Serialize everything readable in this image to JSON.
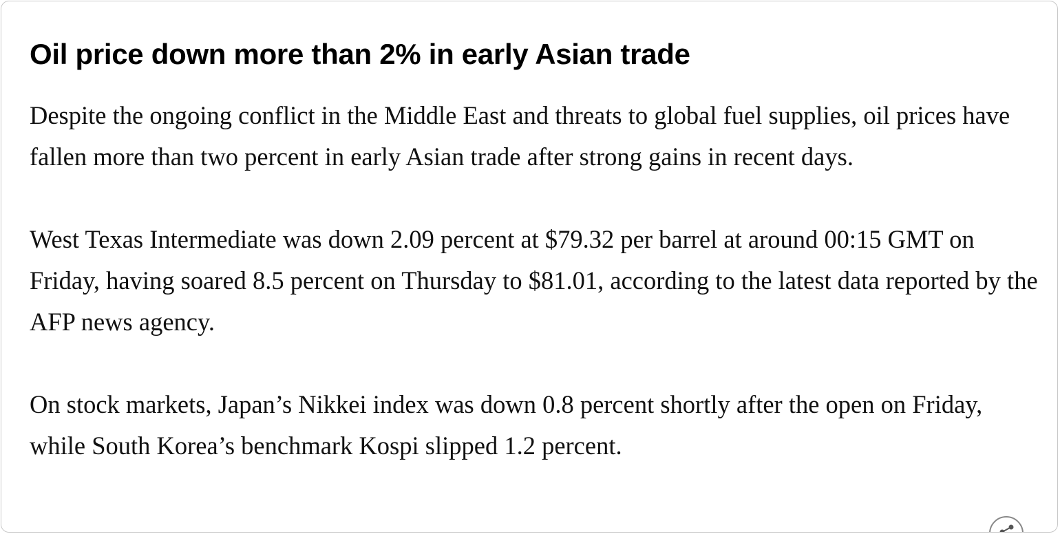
{
  "article": {
    "headline": "Oil price down more than 2% in early Asian trade",
    "paragraphs": [
      "Despite the ongoing conflict in the Middle East and threats to global fuel supplies, oil prices have fallen more than two percent in early Asian trade after strong gains in recent days.",
      "West Texas Intermediate was down 2.09 percent at $79.32 per barrel at around 00:15 GMT on Friday, having soared 8.5 percent on Thursday to $81.01, according to the latest data reported by the AFP news agency.",
      "On stock markets, Japan’s Nikkei index was down 0.8 percent shortly after the open on Friday, while South Korea’s benchmark Kospi slipped 1.2 percent."
    ]
  },
  "share": {
    "icon": "share-icon"
  }
}
